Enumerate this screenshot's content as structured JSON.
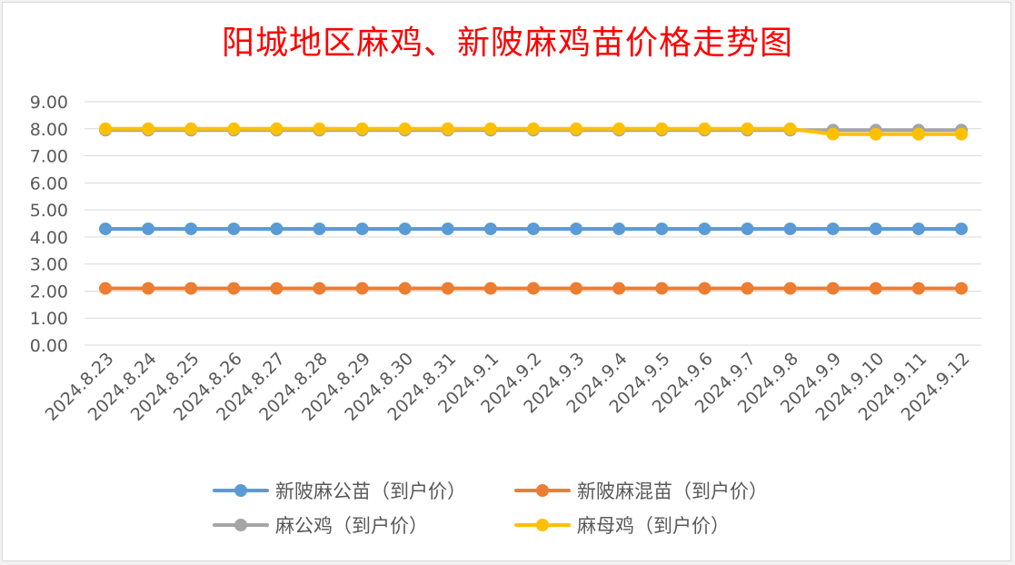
{
  "chart_data": {
    "type": "line",
    "title": "阳城地区麻鸡、新陂麻鸡苗价格走势图",
    "xlabel": "",
    "ylabel": "",
    "ylim": [
      0,
      9
    ],
    "yticks": [
      "0.00",
      "1.00",
      "2.00",
      "3.00",
      "4.00",
      "5.00",
      "6.00",
      "7.00",
      "8.00",
      "9.00"
    ],
    "grid": true,
    "legend_position": "bottom",
    "categories": [
      "2024.8.23",
      "2024.8.24",
      "2024.8.25",
      "2024.8.26",
      "2024.8.27",
      "2024.8.28",
      "2024.8.29",
      "2024.8.30",
      "2024.8.31",
      "2024.9.1",
      "2024.9.2",
      "2024.9.3",
      "2024.9.4",
      "2024.9.5",
      "2024.9.6",
      "2024.9.7",
      "2024.9.8",
      "2024.9.9",
      "2024.9.10",
      "2024.9.11",
      "2024.9.12"
    ],
    "series": [
      {
        "name": "新陂麻公苗（到户价）",
        "color": "#5b9bd5",
        "values": [
          4.3,
          4.3,
          4.3,
          4.3,
          4.3,
          4.3,
          4.3,
          4.3,
          4.3,
          4.3,
          4.3,
          4.3,
          4.3,
          4.3,
          4.3,
          4.3,
          4.3,
          4.3,
          4.3,
          4.3,
          4.3
        ]
      },
      {
        "name": "新陂麻混苗（到户价）",
        "color": "#ed7d31",
        "values": [
          2.1,
          2.1,
          2.1,
          2.1,
          2.1,
          2.1,
          2.1,
          2.1,
          2.1,
          2.1,
          2.1,
          2.1,
          2.1,
          2.1,
          2.1,
          2.1,
          2.1,
          2.1,
          2.1,
          2.1,
          2.1
        ]
      },
      {
        "name": "麻公鸡（到户价）",
        "color": "#a5a5a5",
        "values": [
          7.95,
          7.95,
          7.95,
          7.95,
          7.95,
          7.95,
          7.95,
          7.95,
          7.95,
          7.95,
          7.95,
          7.95,
          7.95,
          7.95,
          7.95,
          7.95,
          7.95,
          7.95,
          7.95,
          7.95,
          7.95
        ]
      },
      {
        "name": "麻母鸡（到户价）",
        "color": "#ffc000",
        "values": [
          8.0,
          8.0,
          8.0,
          8.0,
          8.0,
          8.0,
          8.0,
          8.0,
          8.0,
          8.0,
          8.0,
          8.0,
          8.0,
          8.0,
          8.0,
          8.0,
          8.0,
          7.8,
          7.8,
          7.8,
          7.8
        ]
      }
    ]
  }
}
